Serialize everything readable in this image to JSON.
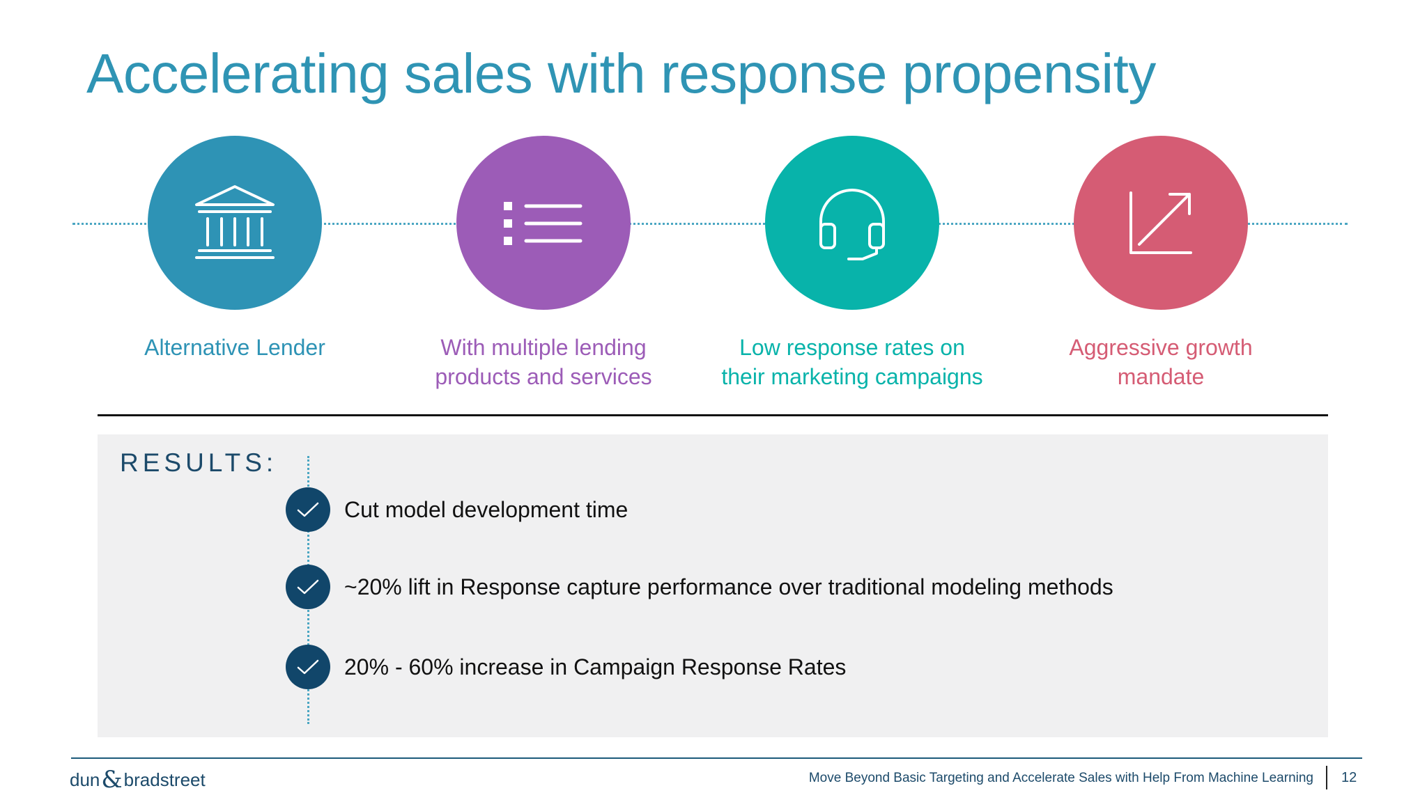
{
  "slide": {
    "title": "Accelerating sales with response propensity"
  },
  "steps": [
    {
      "icon": "bank-icon",
      "color": "#2e93b5",
      "lines": [
        "Alternative Lender"
      ]
    },
    {
      "icon": "list-icon",
      "color": "#9c5cb7",
      "lines": [
        "With multiple lending",
        "products and services"
      ]
    },
    {
      "icon": "headset-icon",
      "color": "#08b3aa",
      "lines": [
        "Low response rates on",
        "their marketing campaigns"
      ]
    },
    {
      "icon": "growth-arrow-icon",
      "color": "#d55c74",
      "lines": [
        "Aggressive growth",
        "mandate"
      ]
    }
  ],
  "results": {
    "title": "RESULTS:",
    "items": [
      "Cut model development time",
      "~20% lift in Response capture performance over traditional modeling methods",
      "20% - 60% increase in Campaign Response Rates"
    ]
  },
  "footer": {
    "logo_left": "dun",
    "logo_amp": "&",
    "logo_right": "bradstreet",
    "caption": "Move Beyond Basic Targeting and Accelerate Sales with Help From Machine Learning",
    "page_number": "12"
  }
}
